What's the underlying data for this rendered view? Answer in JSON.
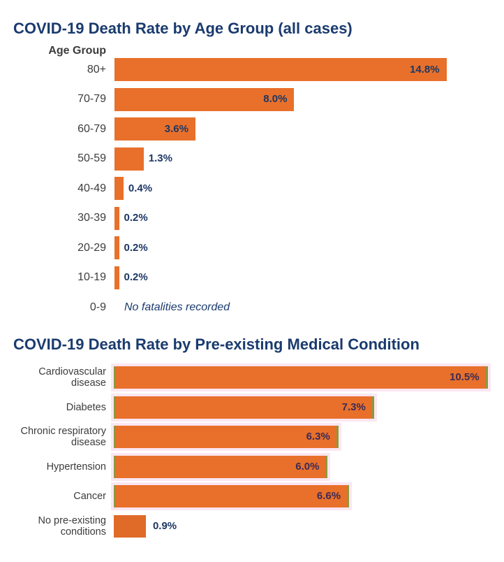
{
  "chart_data": [
    {
      "type": "bar",
      "orientation": "horizontal",
      "title": "COVID-19 Death Rate by Age Group (all cases)",
      "axis_header": "Age Group",
      "categories": [
        "80+",
        "70-79",
        "60-79",
        "50-59",
        "40-49",
        "30-39",
        "20-29",
        "10-19",
        "0-9"
      ],
      "values": [
        14.8,
        8.0,
        3.6,
        1.3,
        0.4,
        0.2,
        0.2,
        0.2,
        null
      ],
      "value_labels": [
        "14.8%",
        "8.0%",
        "3.6%",
        "1.3%",
        "0.4%",
        "0.2%",
        "0.2%",
        "0.2%",
        ""
      ],
      "note": "No fatalities recorded",
      "bar_color": "#e8702a"
    },
    {
      "type": "bar",
      "orientation": "horizontal",
      "title": "COVID-19 Death Rate by Pre-existing Medical Condition",
      "categories": [
        "Cardiovascular disease",
        "Diabetes",
        "Chronic respiratory disease",
        "Hypertension",
        "Cancer",
        "No pre-existing conditions"
      ],
      "category_lines": [
        [
          "Cardiovascular",
          "disease"
        ],
        [
          "Diabetes"
        ],
        [
          "Chronic respiratory",
          "disease"
        ],
        [
          "Hypertension"
        ],
        [
          "Cancer"
        ],
        [
          "No pre-existing",
          "conditions"
        ]
      ],
      "values": [
        10.5,
        7.3,
        6.3,
        6.0,
        6.6,
        0.9
      ],
      "value_labels": [
        "10.5%",
        "7.3%",
        "6.3%",
        "6.0%",
        "6.6%",
        "0.9%"
      ],
      "bar_color": "#e8702a"
    }
  ]
}
